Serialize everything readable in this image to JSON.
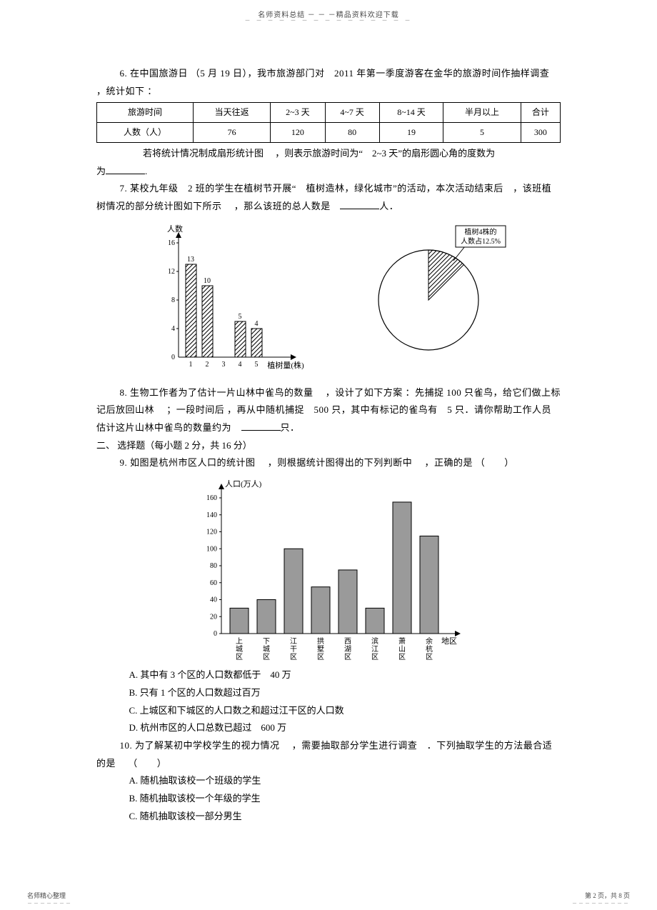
{
  "header": {
    "line": "名师资料总结 － － －精品资料欢迎下载"
  },
  "q6": {
    "text": "6.  在中国旅游日 （5 月 19 日），我市旅游部门对　2011 年第一季度游客在金华的旅游时间作抽样调查 ，统计如下 ：",
    "table": {
      "headers": [
        "旅游时间",
        "当天往返",
        "2~3 天",
        "4~7 天",
        "8~14 天",
        "半月以上",
        "合计"
      ],
      "row_label": "人数（人）",
      "values": [
        "76",
        "120",
        "80",
        "19",
        "5",
        "300"
      ]
    },
    "after": "若将统计情况制成扇形统计图　 ，则表示旅游时间为“　2~3 天”的扇形圆心角的度数为",
    "after_suffix": "."
  },
  "q7": {
    "text": "7. 某校九年级　2 班的学生在植树节开展“　植树造林，绿化城市”的活动，本次活动结束后　，该班植树情况的部分统计图如下所示　 ，那么该班的总人数是　",
    "suffix": "人．",
    "bar_chart": {
      "ylabel": "人数",
      "xlabel": "植树量(株)",
      "y_ticks": [
        0,
        4,
        8,
        12,
        16
      ],
      "categories": [
        "1",
        "2",
        "3",
        "4",
        "5"
      ],
      "values": [
        13,
        10,
        0,
        5,
        4
      ],
      "value_labels": [
        "13",
        "10",
        "",
        "5",
        "4"
      ],
      "bar_color": "#ffffff",
      "hatch": true
    },
    "pie_chart": {
      "label": "植树4株的人数占12.5%",
      "slice_pct": 12.5,
      "slice_color": "#ffffff",
      "rest_color": "#ffffff"
    }
  },
  "q8": {
    "text": "8.  生物工作者为了估计一片山林中雀鸟的数量　 ，设计了如下方案 ：先捕捉  100 只雀鸟，给它们做上标记后放回山林 　；一段时间后 ，再从中随机捕捉　500 只，其中有标记的雀鸟有　5 只．请你帮助工作人员估计这片山林中雀鸟的数量约为　",
    "suffix": "只．"
  },
  "section2": "二、 选择题（每小题  2 分，共 16 分）",
  "q9": {
    "text": "9.  如图是杭州市区人口的统计图　 ，则根据统计图得出的下列判断中　 ，正确的是  （　　）",
    "chart": {
      "ylabel": "人口(万人)",
      "xlabel": "地区",
      "y_ticks": [
        0,
        20,
        40,
        60,
        80,
        100,
        120,
        140,
        160
      ],
      "categories": [
        "上城区",
        "下城区",
        "江干区",
        "拱墅区",
        "西湖区",
        "滨江区",
        "萧山区",
        "余杭区"
      ],
      "values": [
        30,
        40,
        100,
        55,
        75,
        30,
        155,
        115
      ],
      "bar_color": "#9a9a9a"
    },
    "options": {
      "A": "A.  其中有  3 个区的人口数都低于　40 万",
      "B": "B.  只有  1 个区的人口数超过百万",
      "C": "C.  上城区和下城区的人口数之和超过江干区的人口数",
      "D": "D.  杭州市区的人口总数已超过　600 万"
    }
  },
  "q10": {
    "text": "10.  为了解某初中学校学生的视力情况　 ，需要抽取部分学生进行调查　．下列抽取学生的方法最合适的是　 （　　）",
    "options": {
      "A": "A.  随机抽取该校一个班级的学生",
      "B": "B.  随机抽取该校一个年级的学生",
      "C": "C.  随机抽取该校一部分男生"
    }
  },
  "footer": {
    "left": "名师精心整理",
    "right": "第 2 页，共 8 页"
  }
}
